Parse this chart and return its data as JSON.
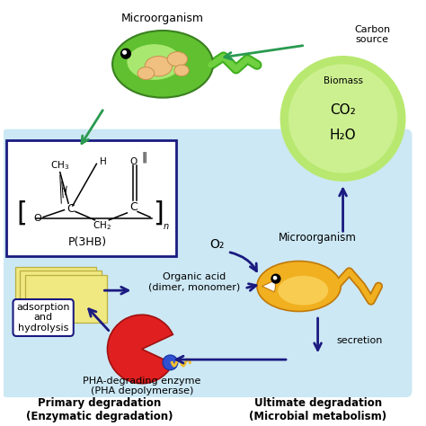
{
  "bg_color": "#ffffff",
  "light_blue_bg": "#cceeff",
  "arrow_color_green": "#2a9a50",
  "arrow_color_blue": "#1a1a80",
  "pha_box_border": "#1a1a80",
  "biomass_circle_color": "#b8e890",
  "labels": {
    "microorganism_top": "Microorganism",
    "carbon_source": "Carbon\nsource",
    "biomass": "Biomass",
    "co2": "CO₂",
    "h2o": "H₂O",
    "microorganism_right": "Microorganism",
    "o2": "O₂",
    "organic_acid": "Organic acid\n(dimer, monomer)",
    "secretion": "secretion",
    "pha_enzyme": "PHA-degrading enzyme\n(PHA depolymerase)",
    "adsorption": "adsorption\nand\nhydrolysis",
    "p3hb": "P(3HB)",
    "primary_deg": "Primary degradation\n(Enzymatic degradation)",
    "ultimate_deg": "Ultimate degradation\n(Microbial metabolism)"
  }
}
